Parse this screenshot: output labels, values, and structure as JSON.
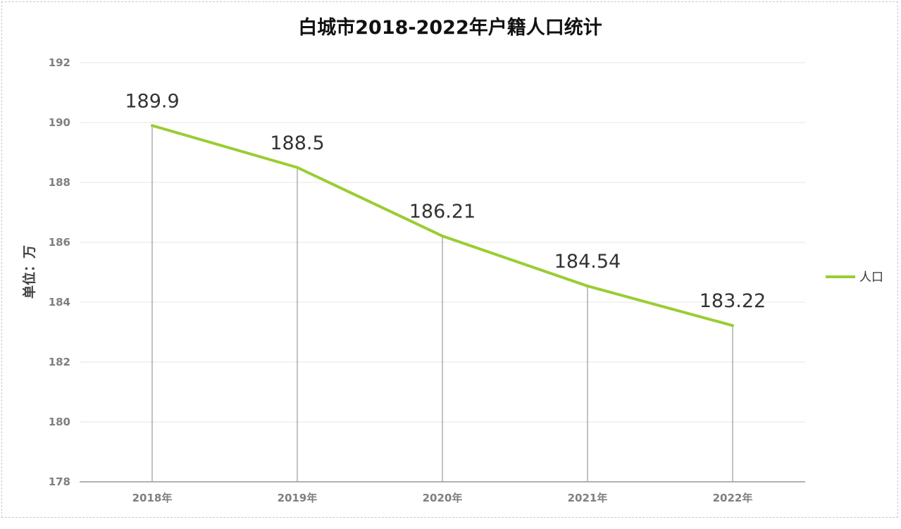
{
  "chart_data": {
    "type": "line",
    "title": "白城市2018-2022年户籍人口统计",
    "ylabel": "单位：万",
    "xlabel": "",
    "categories": [
      "2018年",
      "2019年",
      "2020年",
      "2021年",
      "2022年"
    ],
    "series": [
      {
        "name": "人口",
        "values": [
          189.9,
          188.5,
          186.21,
          184.54,
          183.22
        ],
        "color": "#9acd32"
      }
    ],
    "data_labels": [
      "189.9",
      "188.5",
      "186.21",
      "184.54",
      "183.22"
    ],
    "ylim": [
      178,
      192
    ],
    "yticks": [
      178,
      180,
      182,
      184,
      186,
      188,
      190,
      192
    ],
    "grid": true,
    "drop_lines": true,
    "legend_position": "right"
  }
}
